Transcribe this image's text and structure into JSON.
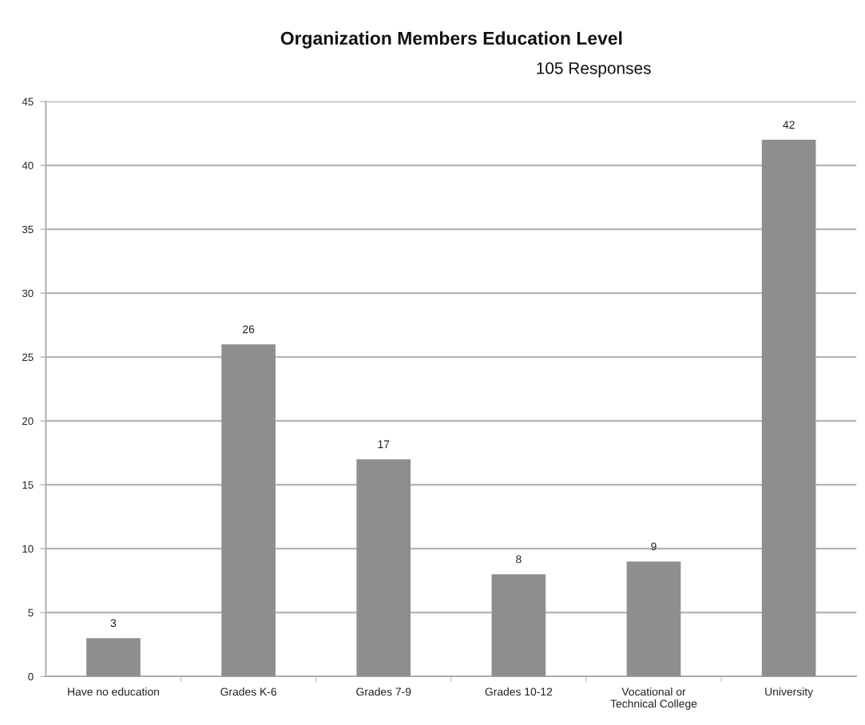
{
  "chart_data": {
    "type": "bar",
    "title": "Organization Members Education Level",
    "subtitle": "105 Responses",
    "categories": [
      "Have no education",
      "Grades K-6",
      "Grades 7-9",
      "Grades 10-12",
      "Vocational or\nTechnical College",
      "University"
    ],
    "values": [
      3,
      26,
      17,
      8,
      9,
      42
    ],
    "color": "#8e8e8e",
    "ylim": [
      0,
      45
    ],
    "yticks": [
      0,
      5,
      10,
      15,
      20,
      25,
      30,
      35,
      40,
      45
    ],
    "grid": "y",
    "data_labels": true
  }
}
